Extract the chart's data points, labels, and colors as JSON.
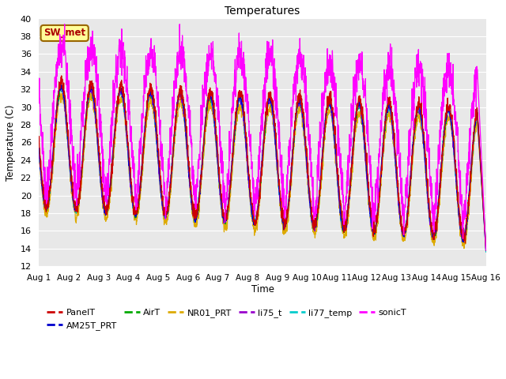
{
  "title": "Temperatures",
  "xlabel": "Time",
  "ylabel": "Temperature (C)",
  "ylim": [
    12,
    40
  ],
  "yticks": [
    12,
    14,
    16,
    18,
    20,
    22,
    24,
    26,
    28,
    30,
    32,
    34,
    36,
    38,
    40
  ],
  "bg_color": "#e8e8e8",
  "series_colors": {
    "PanelT": "#cc0000",
    "AM25T_PRT": "#0000cc",
    "AirT": "#00aa00",
    "NR01_PRT": "#ddaa00",
    "li75_t": "#9900cc",
    "li77_temp": "#00cccc",
    "sonicT": "#ff00ff"
  },
  "annotation_text": "SW_met",
  "annotation_bg": "#ffff99",
  "annotation_border": "#996600",
  "annotation_text_color": "#aa0000",
  "n_days": 15,
  "samples_per_day": 144
}
